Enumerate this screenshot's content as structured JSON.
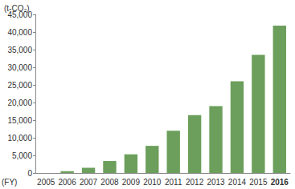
{
  "chart_data": {
    "type": "bar",
    "y_label": "(t-CO₂)",
    "x_label": "(FY)",
    "categories": [
      "2005",
      "2006",
      "2007",
      "2008",
      "2009",
      "2010",
      "2011",
      "2012",
      "2013",
      "2014",
      "2015",
      "2016"
    ],
    "values": [
      0,
      500,
      1500,
      3400,
      5300,
      7700,
      12000,
      16400,
      19000,
      26000,
      33500,
      41800
    ],
    "color": "#6b9f5b",
    "ylim": [
      0,
      45000
    ],
    "yticks": [
      0,
      {
        "value": 5000,
        "label": "5,000"
      },
      {
        "value": 10000,
        "label": "10,000"
      },
      {
        "value": 15000,
        "label": "15,000"
      },
      {
        "value": 20000,
        "label": "20,000"
      },
      {
        "value": 25000,
        "label": "25,000"
      },
      {
        "value": 30000,
        "label": "30,000"
      },
      {
        "value": 35000,
        "label": "35,000"
      },
      {
        "value": 40000,
        "label": "40,000"
      },
      {
        "value": 45000,
        "label": "45,000"
      }
    ],
    "grid": false
  }
}
